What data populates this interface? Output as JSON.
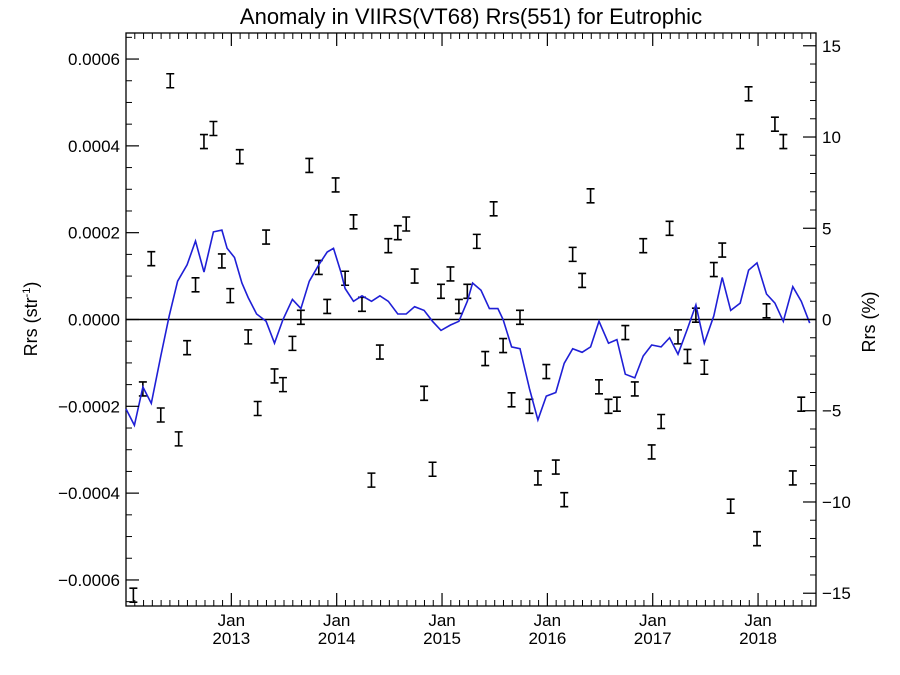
{
  "chart_data": {
    "type": "line",
    "title": "Anomaly in VIIRS(VT68) Rrs(551) for Eutrophic",
    "ylabel_left": "Rrs (str",
    "ylabel_left_sup": "-1",
    "ylabel_left_close": ")",
    "ylabel_right": "Rrs (%)",
    "xlim": [
      2012.0,
      2018.55
    ],
    "ylim_left": [
      -0.00066,
      0.00066
    ],
    "ylim_right": [
      -15.7,
      15.7
    ],
    "grid": false,
    "x_ticks": [
      {
        "value": 2013.0,
        "month": "Jan",
        "year": "2013"
      },
      {
        "value": 2014.0,
        "month": "Jan",
        "year": "2014"
      },
      {
        "value": 2015.0,
        "month": "Jan",
        "year": "2015"
      },
      {
        "value": 2016.0,
        "month": "Jan",
        "year": "2016"
      },
      {
        "value": 2017.0,
        "month": "Jan",
        "year": "2017"
      },
      {
        "value": 2018.0,
        "month": "Jan",
        "year": "2018"
      }
    ],
    "y_left_ticks": [
      {
        "value": 0.0006,
        "label": "0.0006"
      },
      {
        "value": 0.0004,
        "label": "0.0004"
      },
      {
        "value": 0.0002,
        "label": "0.0002"
      },
      {
        "value": 0.0,
        "label": "0.0000"
      },
      {
        "value": -0.0002,
        "label": "−0.0002"
      },
      {
        "value": -0.0004,
        "label": "−0.0004"
      },
      {
        "value": -0.0006,
        "label": "−0.0006"
      }
    ],
    "y_right_ticks": [
      {
        "value": 15,
        "label": "15"
      },
      {
        "value": 10,
        "label": "10"
      },
      {
        "value": 5,
        "label": "5"
      },
      {
        "value": 0,
        "label": "0"
      },
      {
        "value": -5,
        "label": "−5"
      },
      {
        "value": -10,
        "label": "−10"
      },
      {
        "value": -15,
        "label": "−15"
      }
    ],
    "zero_line": 0,
    "series": [
      {
        "kind": "errorbar",
        "color": "#000000",
        "points": [
          {
            "x": 2012.07,
            "y": -0.000635
          },
          {
            "x": 2012.16,
            "y": -0.00016
          },
          {
            "x": 2012.24,
            "y": 0.00014
          },
          {
            "x": 2012.33,
            "y": -0.00022
          },
          {
            "x": 2012.42,
            "y": 0.00055
          },
          {
            "x": 2012.5,
            "y": -0.000275
          },
          {
            "x": 2012.58,
            "y": -6.5e-05
          },
          {
            "x": 2012.66,
            "y": 8e-05
          },
          {
            "x": 2012.74,
            "y": 0.00041
          },
          {
            "x": 2012.83,
            "y": 0.00044
          },
          {
            "x": 2012.91,
            "y": 0.000135
          },
          {
            "x": 2012.99,
            "y": 5.5e-05
          },
          {
            "x": 2013.08,
            "y": 0.000375
          },
          {
            "x": 2013.16,
            "y": -4e-05
          },
          {
            "x": 2013.25,
            "y": -0.000205
          },
          {
            "x": 2013.33,
            "y": 0.00019
          },
          {
            "x": 2013.41,
            "y": -0.00013
          },
          {
            "x": 2013.49,
            "y": -0.00015
          },
          {
            "x": 2013.58,
            "y": -5.5e-05
          },
          {
            "x": 2013.66,
            "y": 5e-06
          },
          {
            "x": 2013.74,
            "y": 0.000355
          },
          {
            "x": 2013.83,
            "y": 0.00012
          },
          {
            "x": 2013.91,
            "y": 3e-05
          },
          {
            "x": 2013.99,
            "y": 0.00031
          },
          {
            "x": 2014.08,
            "y": 9.5e-05
          },
          {
            "x": 2014.16,
            "y": 0.000225
          },
          {
            "x": 2014.24,
            "y": 3.5e-05
          },
          {
            "x": 2014.33,
            "y": -0.00037
          },
          {
            "x": 2014.41,
            "y": -7.5e-05
          },
          {
            "x": 2014.49,
            "y": 0.00017
          },
          {
            "x": 2014.58,
            "y": 0.0002
          },
          {
            "x": 2014.66,
            "y": 0.00022
          },
          {
            "x": 2014.74,
            "y": 0.0001
          },
          {
            "x": 2014.83,
            "y": -0.00017
          },
          {
            "x": 2014.91,
            "y": -0.000345
          },
          {
            "x": 2014.99,
            "y": 6.5e-05
          },
          {
            "x": 2015.08,
            "y": 0.000105
          },
          {
            "x": 2015.16,
            "y": 3e-05
          },
          {
            "x": 2015.24,
            "y": 6.5e-05
          },
          {
            "x": 2015.33,
            "y": 0.00018
          },
          {
            "x": 2015.41,
            "y": -9e-05
          },
          {
            "x": 2015.49,
            "y": 0.000255
          },
          {
            "x": 2015.58,
            "y": -6e-05
          },
          {
            "x": 2015.66,
            "y": -0.000185
          },
          {
            "x": 2015.74,
            "y": 5e-06
          },
          {
            "x": 2015.83,
            "y": -0.0002
          },
          {
            "x": 2015.91,
            "y": -0.000365
          },
          {
            "x": 2015.99,
            "y": -0.00012
          },
          {
            "x": 2016.08,
            "y": -0.00034
          },
          {
            "x": 2016.16,
            "y": -0.000415
          },
          {
            "x": 2016.24,
            "y": 0.00015
          },
          {
            "x": 2016.33,
            "y": 9e-05
          },
          {
            "x": 2016.41,
            "y": 0.000285
          },
          {
            "x": 2016.49,
            "y": -0.000155
          },
          {
            "x": 2016.58,
            "y": -0.0002
          },
          {
            "x": 2016.66,
            "y": -0.000195
          },
          {
            "x": 2016.74,
            "y": -3e-05
          },
          {
            "x": 2016.83,
            "y": -0.00016
          },
          {
            "x": 2016.91,
            "y": 0.00017
          },
          {
            "x": 2016.99,
            "y": -0.000305
          },
          {
            "x": 2017.08,
            "y": -0.000235
          },
          {
            "x": 2017.16,
            "y": 0.00021
          },
          {
            "x": 2017.24,
            "y": -4e-05
          },
          {
            "x": 2017.33,
            "y": -8.5e-05
          },
          {
            "x": 2017.41,
            "y": 1e-05
          },
          {
            "x": 2017.49,
            "y": -0.00011
          },
          {
            "x": 2017.58,
            "y": 0.000115
          },
          {
            "x": 2017.66,
            "y": 0.00016
          },
          {
            "x": 2017.74,
            "y": -0.00043
          },
          {
            "x": 2017.83,
            "y": 0.00041
          },
          {
            "x": 2017.91,
            "y": 0.00052
          },
          {
            "x": 2017.99,
            "y": -0.000505
          },
          {
            "x": 2018.08,
            "y": 2e-05
          },
          {
            "x": 2018.16,
            "y": 0.00045
          },
          {
            "x": 2018.24,
            "y": 0.00041
          },
          {
            "x": 2018.33,
            "y": -0.000365
          },
          {
            "x": 2018.41,
            "y": -0.000195
          }
        ]
      },
      {
        "kind": "line",
        "color": "#1f1fd6",
        "axis": "right",
        "points": [
          {
            "x": 2012.0,
            "y": -4.9
          },
          {
            "x": 2012.08,
            "y": -5.8
          },
          {
            "x": 2012.16,
            "y": -3.7
          },
          {
            "x": 2012.24,
            "y": -4.6
          },
          {
            "x": 2012.33,
            "y": -2.0
          },
          {
            "x": 2012.41,
            "y": 0.2
          },
          {
            "x": 2012.49,
            "y": 2.1
          },
          {
            "x": 2012.58,
            "y": 3.0
          },
          {
            "x": 2012.66,
            "y": 4.3
          },
          {
            "x": 2012.74,
            "y": 2.6
          },
          {
            "x": 2012.83,
            "y": 4.8
          },
          {
            "x": 2012.91,
            "y": 4.9
          },
          {
            "x": 2012.96,
            "y": 3.9
          },
          {
            "x": 2013.03,
            "y": 3.4
          },
          {
            "x": 2013.1,
            "y": 2.0
          },
          {
            "x": 2013.16,
            "y": 1.2
          },
          {
            "x": 2013.24,
            "y": 0.3
          },
          {
            "x": 2013.33,
            "y": -0.1
          },
          {
            "x": 2013.41,
            "y": -1.3
          },
          {
            "x": 2013.49,
            "y": 0.0
          },
          {
            "x": 2013.58,
            "y": 1.1
          },
          {
            "x": 2013.66,
            "y": 0.6
          },
          {
            "x": 2013.74,
            "y": 2.1
          },
          {
            "x": 2013.83,
            "y": 3.0
          },
          {
            "x": 2013.91,
            "y": 3.7
          },
          {
            "x": 2013.97,
            "y": 3.9
          },
          {
            "x": 2014.04,
            "y": 2.6
          },
          {
            "x": 2014.08,
            "y": 1.7
          },
          {
            "x": 2014.16,
            "y": 1.0
          },
          {
            "x": 2014.24,
            "y": 1.3
          },
          {
            "x": 2014.33,
            "y": 1.0
          },
          {
            "x": 2014.41,
            "y": 1.3
          },
          {
            "x": 2014.49,
            "y": 1.0
          },
          {
            "x": 2014.58,
            "y": 0.3
          },
          {
            "x": 2014.66,
            "y": 0.3
          },
          {
            "x": 2014.74,
            "y": 0.7
          },
          {
            "x": 2014.83,
            "y": 0.5
          },
          {
            "x": 2014.91,
            "y": -0.1
          },
          {
            "x": 2014.99,
            "y": -0.6
          },
          {
            "x": 2015.08,
            "y": -0.3
          },
          {
            "x": 2015.16,
            "y": -0.1
          },
          {
            "x": 2015.24,
            "y": 1.0
          },
          {
            "x": 2015.29,
            "y": 2.0
          },
          {
            "x": 2015.37,
            "y": 1.6
          },
          {
            "x": 2015.45,
            "y": 0.6
          },
          {
            "x": 2015.53,
            "y": 0.6
          },
          {
            "x": 2015.58,
            "y": 0.0
          },
          {
            "x": 2015.66,
            "y": -1.5
          },
          {
            "x": 2015.74,
            "y": -1.6
          },
          {
            "x": 2015.83,
            "y": -3.8
          },
          {
            "x": 2015.91,
            "y": -5.5
          },
          {
            "x": 2015.99,
            "y": -4.2
          },
          {
            "x": 2016.08,
            "y": -4.0
          },
          {
            "x": 2016.16,
            "y": -2.4
          },
          {
            "x": 2016.24,
            "y": -1.6
          },
          {
            "x": 2016.33,
            "y": -1.8
          },
          {
            "x": 2016.41,
            "y": -1.5
          },
          {
            "x": 2016.49,
            "y": -0.1
          },
          {
            "x": 2016.58,
            "y": -1.3
          },
          {
            "x": 2016.66,
            "y": -1.1
          },
          {
            "x": 2016.74,
            "y": -3.0
          },
          {
            "x": 2016.83,
            "y": -3.2
          },
          {
            "x": 2016.91,
            "y": -2.0
          },
          {
            "x": 2016.99,
            "y": -1.4
          },
          {
            "x": 2017.08,
            "y": -1.5
          },
          {
            "x": 2017.16,
            "y": -1.0
          },
          {
            "x": 2017.24,
            "y": -1.9
          },
          {
            "x": 2017.33,
            "y": -0.5
          },
          {
            "x": 2017.41,
            "y": 0.8
          },
          {
            "x": 2017.49,
            "y": -1.3
          },
          {
            "x": 2017.58,
            "y": 0.2
          },
          {
            "x": 2017.66,
            "y": 2.3
          },
          {
            "x": 2017.74,
            "y": 0.5
          },
          {
            "x": 2017.83,
            "y": 0.9
          },
          {
            "x": 2017.91,
            "y": 2.7
          },
          {
            "x": 2017.99,
            "y": 3.1
          },
          {
            "x": 2018.08,
            "y": 1.4
          },
          {
            "x": 2018.16,
            "y": 0.9
          },
          {
            "x": 2018.24,
            "y": -0.1
          },
          {
            "x": 2018.33,
            "y": 1.8
          },
          {
            "x": 2018.41,
            "y": 1.0
          },
          {
            "x": 2018.49,
            "y": -0.2
          }
        ]
      }
    ]
  }
}
